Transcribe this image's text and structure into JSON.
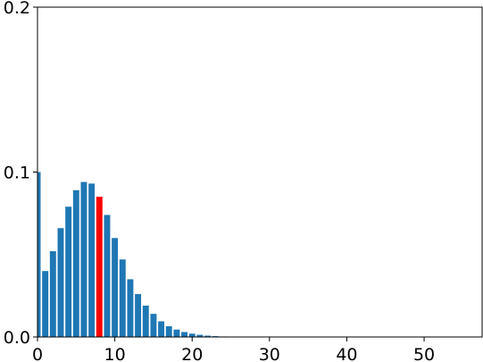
{
  "chart_data": {
    "type": "bar",
    "title": "",
    "xlabel": "",
    "ylabel": "",
    "xlim": [
      0,
      57.5
    ],
    "ylim": [
      0,
      0.2
    ],
    "xticks": [
      0,
      10,
      20,
      30,
      40,
      50
    ],
    "xtick_labels": [
      "0",
      "10",
      "20",
      "30",
      "40",
      "50"
    ],
    "yticks": [
      0.0,
      0.1,
      0.2
    ],
    "ytick_labels": [
      "0.0",
      "0.1",
      "0.2"
    ],
    "grid": false,
    "bar_color": "#1f77b4",
    "highlight_color": "#ff0000",
    "highlight_index": 8,
    "x": [
      0,
      1,
      2,
      3,
      4,
      5,
      6,
      7,
      8,
      9,
      10,
      11,
      12,
      13,
      14,
      15,
      16,
      17,
      18,
      19,
      20,
      21,
      22,
      23,
      24,
      25,
      26,
      27,
      28,
      29,
      30
    ],
    "values": [
      0.1,
      0.04,
      0.052,
      0.066,
      0.079,
      0.089,
      0.094,
      0.093,
      0.085,
      0.074,
      0.06,
      0.047,
      0.035,
      0.026,
      0.019,
      0.014,
      0.0095,
      0.0065,
      0.0045,
      0.003,
      0.002,
      0.0013,
      0.0008,
      0.0005,
      0.0003,
      0.0002,
      0.0001,
      5e-05,
      3e-05,
      2e-05,
      1e-05
    ]
  }
}
